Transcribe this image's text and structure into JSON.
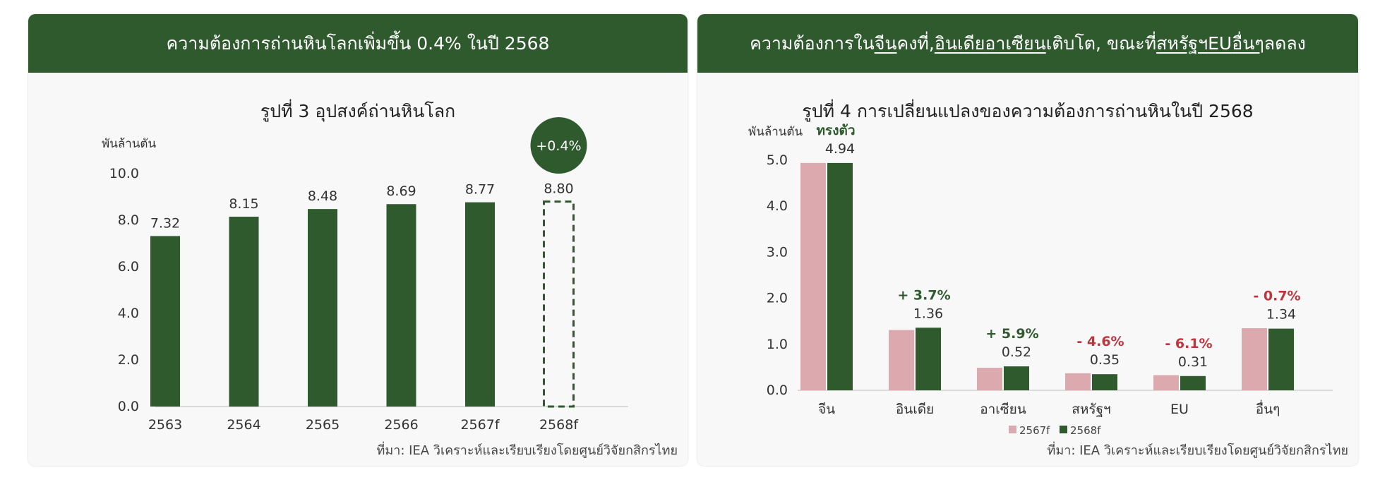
{
  "colors": {
    "header_bg": "#2e5a2e",
    "bar_dark_green": "#2e5a2e",
    "bar_pink": "#dba9ae",
    "positive_label": "#2e5a2e",
    "negative_label": "#c0343c"
  },
  "left": {
    "header": "ความต้องการถ่านหินโลกเพิ่มขึ้น 0.4% ในปี 2568",
    "source": "ที่มา: IEA วิเคราะห์และเรียบเรียงโดยศูนย์วิจัยกสิกรไทย"
  },
  "right": {
    "header_parts": [
      {
        "text": "ความต้องการใน",
        "underline": false
      },
      {
        "text": "จีน",
        "underline": true
      },
      {
        "text": " คงที่, ",
        "underline": false
      },
      {
        "text": "อินเดีย",
        "underline": true
      },
      {
        "text": " ",
        "underline": false
      },
      {
        "text": "อาเซียน",
        "underline": true
      },
      {
        "text": " เติบโต, ขณะที่ ",
        "underline": false
      },
      {
        "text": "สหรัฐฯ",
        "underline": true
      },
      {
        "text": " ",
        "underline": false
      },
      {
        "text": "EU",
        "underline": true
      },
      {
        "text": " ",
        "underline": false
      },
      {
        "text": "อื่นๆ",
        "underline": true
      },
      {
        "text": " ลดลง",
        "underline": false
      }
    ],
    "source": "ที่มา: IEA วิเคราะห์และเรียบเรียงโดยศูนย์วิจัยกสิกรไทย"
  },
  "chart_data": [
    {
      "type": "bar",
      "title": "รูปที่ 3 อุปสงค์ถ่านหินโลก",
      "ylabel": "พันล้านตัน",
      "categories": [
        "2563",
        "2564",
        "2565",
        "2566",
        "2567f",
        "2568f"
      ],
      "values": [
        7.32,
        8.15,
        8.48,
        8.69,
        8.77,
        8.8
      ],
      "value_labels": [
        "7.32",
        "8.15",
        "8.48",
        "8.69",
        "8.77",
        "8.80"
      ],
      "dashed_bar": "2568f",
      "ylim": [
        0,
        10
      ],
      "yticks": [
        "0.0",
        "2.0",
        "4.0",
        "6.0",
        "8.0",
        "10.0"
      ],
      "badge": "+0.4%",
      "grid": false,
      "legend": "none"
    },
    {
      "type": "bar",
      "title": "รูปที่ 4 การเปลี่ยนแปลงของความต้องการถ่านหินในปี 2568",
      "ylabel": "พันล้านตัน",
      "categories": [
        "จีน",
        "อินเดีย",
        "อาเซียน",
        "สหรัฐฯ",
        "EU",
        "อื่นๆ"
      ],
      "series": [
        {
          "name": "2567f",
          "values": [
            4.94,
            1.31,
            0.49,
            0.37,
            0.33,
            1.35
          ]
        },
        {
          "name": "2568f",
          "values": [
            4.94,
            1.36,
            0.52,
            0.35,
            0.31,
            1.34
          ]
        }
      ],
      "value_labels": [
        "4.94",
        "1.36",
        "0.52",
        "0.35",
        "0.31",
        "1.34"
      ],
      "change_labels": [
        {
          "text": "ทรงตัว",
          "kind": "positive"
        },
        {
          "text": "+ 3.7%",
          "kind": "positive"
        },
        {
          "text": "+ 5.9%",
          "kind": "positive"
        },
        {
          "text": "- 4.6%",
          "kind": "negative"
        },
        {
          "text": "- 6.1%",
          "kind": "negative"
        },
        {
          "text": "- 0.7%",
          "kind": "negative"
        }
      ],
      "ylim": [
        0,
        5
      ],
      "yticks": [
        "0.0",
        "1.0",
        "2.0",
        "3.0",
        "4.0",
        "5.0"
      ],
      "grid": false,
      "legend": "bottom"
    }
  ]
}
